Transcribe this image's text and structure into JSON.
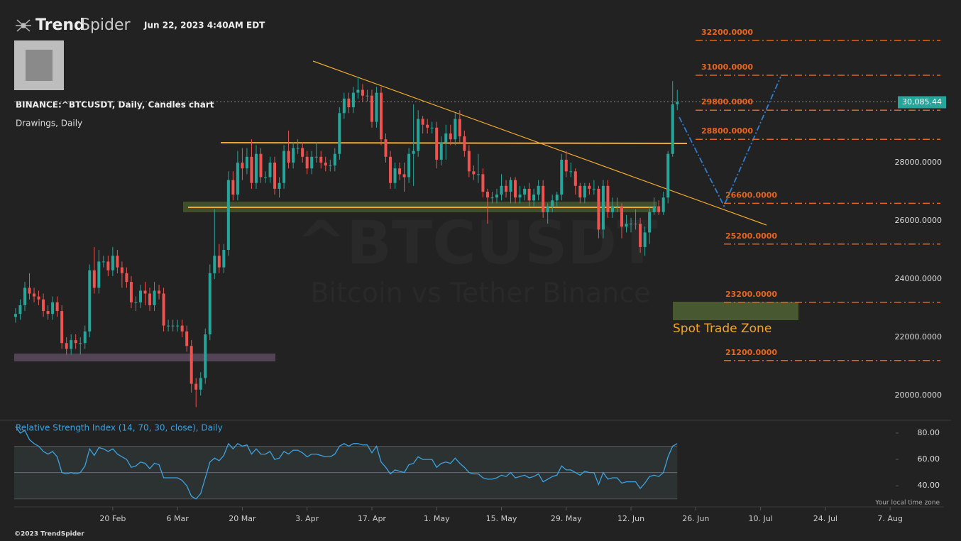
{
  "header": {
    "logo_bold": "Trend",
    "logo_light": "Spider",
    "timestamp": "Jun 22, 2023 4:40AM EDT",
    "symbol_label": "BINANCE:^BTCUSDT, Daily, Candles chart",
    "drawings_label": "Drawings, Daily"
  },
  "footer": {
    "copyright": "©2023 TrendSpider",
    "timezone_note": "Your local time zone"
  },
  "chart_data": [
    {
      "type": "candlestick",
      "watermark_title": "^BTCUSDT",
      "watermark_subtitle": "Bitcoin vs Tether Binance",
      "annotation": "Spot Trade Zone",
      "up_color": "#26a69a",
      "down_color": "#ef5350",
      "level_color": "#e8641f",
      "xlim": [
        -0.3,
        189.9
      ],
      "xticks": [
        {
          "value": 21,
          "label": "20 Feb"
        },
        {
          "value": 35,
          "label": "6 Mar"
        },
        {
          "value": 49,
          "label": "20 Mar"
        },
        {
          "value": 63,
          "label": "3. Apr"
        },
        {
          "value": 77,
          "label": "17. Apr"
        },
        {
          "value": 91,
          "label": "1. May"
        },
        {
          "value": 105,
          "label": "15. May"
        },
        {
          "value": 119,
          "label": "29. May"
        },
        {
          "value": 133,
          "label": "12. Jun"
        },
        {
          "value": 147,
          "label": "26. Jun"
        },
        {
          "value": 161,
          "label": "10. Jul"
        },
        {
          "value": 175,
          "label": "24. Jul"
        },
        {
          "value": 189,
          "label": "7. Aug"
        }
      ],
      "ylim": [
        19195,
        32854
      ],
      "yticks": [
        {
          "value": 20000,
          "label": "20000.0000"
        },
        {
          "value": 22000,
          "label": "22000.0000"
        },
        {
          "value": 24000,
          "label": "24000.0000"
        },
        {
          "value": 26000,
          "label": "26000.0000"
        },
        {
          "value": 28000,
          "label": "28000.0000"
        }
      ],
      "last_price": {
        "value": 30085.44,
        "label": "30,085.44"
      },
      "levels": [
        {
          "value": 32200,
          "label": "32200.0000"
        },
        {
          "value": 31000,
          "label": "31000.0000"
        },
        {
          "value": 29800,
          "label": "29800.0000"
        },
        {
          "value": 28800,
          "label": "28800.0000"
        },
        {
          "value": 26600,
          "label": "26600.0000"
        },
        {
          "value": 25200,
          "label": "25200.0000"
        },
        {
          "value": 23200,
          "label": "23200.0000"
        },
        {
          "value": 21200,
          "label": "21200.0000"
        }
      ],
      "ohlc": [
        [
          22700,
          23000,
          22500,
          22800
        ],
        [
          22800,
          23300,
          22600,
          23100
        ],
        [
          23100,
          23900,
          22900,
          23700
        ],
        [
          23700,
          24200,
          23300,
          23500
        ],
        [
          23500,
          23700,
          23200,
          23400
        ],
        [
          23400,
          23600,
          23100,
          23300
        ],
        [
          23300,
          23500,
          22700,
          22900
        ],
        [
          22900,
          23100,
          22600,
          22800
        ],
        [
          22800,
          23400,
          22600,
          23200
        ],
        [
          23200,
          23400,
          22700,
          22900
        ],
        [
          22900,
          23100,
          21600,
          21800
        ],
        [
          21800,
          22000,
          21400,
          21600
        ],
        [
          21600,
          22100,
          21400,
          21900
        ],
        [
          21900,
          22100,
          21600,
          21800
        ],
        [
          21800,
          22000,
          21400,
          21800
        ],
        [
          21800,
          22400,
          21600,
          22200
        ],
        [
          22200,
          24500,
          22000,
          24300
        ],
        [
          24300,
          25100,
          23500,
          23700
        ],
        [
          23700,
          25000,
          23500,
          24600
        ],
        [
          24600,
          24800,
          24400,
          24600
        ],
        [
          24600,
          24800,
          24100,
          24300
        ],
        [
          24300,
          25100,
          24100,
          24800
        ],
        [
          24800,
          25000,
          24200,
          24400
        ],
        [
          24400,
          24600,
          23700,
          24200
        ],
        [
          24200,
          24400,
          23700,
          23900
        ],
        [
          23900,
          24100,
          23000,
          23200
        ],
        [
          23200,
          23400,
          22900,
          23200
        ],
        [
          23200,
          23800,
          23000,
          23600
        ],
        [
          23600,
          23900,
          23100,
          23500
        ],
        [
          23500,
          23700,
          22900,
          23100
        ],
        [
          23100,
          23900,
          22900,
          23600
        ],
        [
          23600,
          23800,
          23300,
          23500
        ],
        [
          23500,
          23700,
          22200,
          22400
        ],
        [
          22400,
          22600,
          22200,
          22400
        ],
        [
          22400,
          22600,
          22200,
          22400
        ],
        [
          22400,
          22600,
          22200,
          22400
        ],
        [
          22400,
          22600,
          22000,
          22200
        ],
        [
          22200,
          22400,
          21500,
          21700
        ],
        [
          21700,
          21900,
          20100,
          20400
        ],
        [
          20400,
          20600,
          19600,
          20200
        ],
        [
          20200,
          20800,
          20000,
          20600
        ],
        [
          20600,
          22300,
          20400,
          22100
        ],
        [
          22100,
          24500,
          21900,
          24200
        ],
        [
          24200,
          26400,
          24000,
          24800
        ],
        [
          24800,
          25200,
          24200,
          24400
        ],
        [
          24400,
          25200,
          24200,
          25000
        ],
        [
          25000,
          27700,
          24800,
          27400
        ],
        [
          27400,
          27700,
          26700,
          26900
        ],
        [
          26900,
          28400,
          26700,
          28000
        ],
        [
          28000,
          28500,
          27400,
          27800
        ],
        [
          27800,
          28500,
          27600,
          28200
        ],
        [
          28200,
          28800,
          27100,
          27300
        ],
        [
          27300,
          28600,
          27100,
          28300
        ],
        [
          28300,
          28500,
          27300,
          27500
        ],
        [
          27500,
          27700,
          27300,
          27500
        ],
        [
          27500,
          28200,
          27300,
          28000
        ],
        [
          28000,
          28200,
          26900,
          27100
        ],
        [
          27100,
          27500,
          26800,
          27300
        ],
        [
          27300,
          28600,
          27100,
          28400
        ],
        [
          28400,
          29100,
          27800,
          28000
        ],
        [
          28000,
          28700,
          27800,
          28500
        ],
        [
          28500,
          28800,
          28300,
          28500
        ],
        [
          28500,
          28700,
          28000,
          28200
        ],
        [
          28200,
          28400,
          27600,
          27800
        ],
        [
          27800,
          28400,
          27600,
          28200
        ],
        [
          28200,
          28700,
          28000,
          28200
        ],
        [
          28200,
          28400,
          27800,
          28000
        ],
        [
          28000,
          28200,
          27700,
          27900
        ],
        [
          27900,
          28100,
          27700,
          27900
        ],
        [
          27900,
          28500,
          27700,
          28300
        ],
        [
          28300,
          29900,
          28100,
          29700
        ],
        [
          29700,
          30400,
          29500,
          30200
        ],
        [
          30200,
          30400,
          29700,
          29900
        ],
        [
          29900,
          30600,
          29700,
          30400
        ],
        [
          30400,
          30950,
          30200,
          30500
        ],
        [
          30500,
          30700,
          30100,
          30300
        ],
        [
          30300,
          30500,
          30100,
          30300
        ],
        [
          30300,
          30500,
          29200,
          29400
        ],
        [
          29400,
          30600,
          29200,
          30400
        ],
        [
          30400,
          30600,
          28600,
          28800
        ],
        [
          28800,
          29000,
          28000,
          28200
        ],
        [
          28200,
          28400,
          27100,
          27300
        ],
        [
          27300,
          28000,
          27100,
          27800
        ],
        [
          27800,
          28000,
          27400,
          27600
        ],
        [
          27600,
          28000,
          27000,
          27500
        ],
        [
          27500,
          28500,
          27300,
          28300
        ],
        [
          28300,
          30000,
          27200,
          28400
        ],
        [
          28400,
          29800,
          28200,
          29500
        ],
        [
          29500,
          29600,
          29000,
          29300
        ],
        [
          29300,
          29500,
          29000,
          29200
        ],
        [
          29200,
          29400,
          29000,
          29200
        ],
        [
          29200,
          29400,
          27800,
          28100
        ],
        [
          28100,
          28900,
          27900,
          28700
        ],
        [
          28700,
          29300,
          28100,
          29000
        ],
        [
          29000,
          29300,
          28600,
          28800
        ],
        [
          28800,
          29700,
          28600,
          29500
        ],
        [
          29500,
          29800,
          28700,
          28900
        ],
        [
          28900,
          29100,
          28200,
          28400
        ],
        [
          28400,
          28600,
          27500,
          27700
        ],
        [
          27700,
          27900,
          27400,
          27600
        ],
        [
          27600,
          28300,
          27300,
          27600
        ],
        [
          27600,
          27800,
          26800,
          27000
        ],
        [
          27000,
          27100,
          25900,
          26800
        ],
        [
          26800,
          27000,
          26600,
          26800
        ],
        [
          26800,
          27100,
          26600,
          26900
        ],
        [
          26900,
          27600,
          26700,
          27200
        ],
        [
          27200,
          27400,
          26800,
          27000
        ],
        [
          27000,
          27500,
          26600,
          27400
        ],
        [
          27400,
          27500,
          26600,
          26800
        ],
        [
          26800,
          27200,
          26600,
          26900
        ],
        [
          26900,
          27200,
          26700,
          27100
        ],
        [
          27100,
          27300,
          26500,
          26700
        ],
        [
          26700,
          27100,
          26500,
          26900
        ],
        [
          26900,
          27400,
          26700,
          27200
        ],
        [
          27200,
          27400,
          26100,
          26300
        ],
        [
          26300,
          26600,
          25900,
          26500
        ],
        [
          26500,
          26900,
          26300,
          26700
        ],
        [
          26700,
          27000,
          26500,
          26900
        ],
        [
          26900,
          28300,
          26700,
          28100
        ],
        [
          28100,
          28400,
          27500,
          27700
        ],
        [
          27700,
          28000,
          27500,
          27700
        ],
        [
          27700,
          27800,
          26900,
          27200
        ],
        [
          27200,
          27300,
          26600,
          26800
        ],
        [
          26800,
          27300,
          26600,
          27200
        ],
        [
          27200,
          27300,
          26900,
          27100
        ],
        [
          27100,
          27400,
          26900,
          27100
        ],
        [
          27100,
          27200,
          25400,
          25700
        ],
        [
          25700,
          27400,
          25400,
          27200
        ],
        [
          27200,
          27400,
          26100,
          26300
        ],
        [
          26300,
          26800,
          26100,
          26500
        ],
        [
          26500,
          26800,
          26300,
          26500
        ],
        [
          26500,
          26600,
          25400,
          25800
        ],
        [
          25800,
          26200,
          25600,
          25900
        ],
        [
          25900,
          26100,
          25600,
          25900
        ],
        [
          25900,
          26400,
          25700,
          25900
        ],
        [
          25900,
          26100,
          24900,
          25100
        ],
        [
          25100,
          25800,
          24800,
          25600
        ],
        [
          25600,
          26500,
          25200,
          26300
        ],
        [
          26300,
          26800,
          26200,
          26500
        ],
        [
          26500,
          26700,
          26200,
          26300
        ],
        [
          26300,
          27000,
          26200,
          26800
        ],
        [
          26800,
          28400,
          26600,
          28300
        ],
        [
          28300,
          30800,
          28200,
          30000
        ],
        [
          30000,
          30500,
          29800,
          30085
        ]
      ]
    },
    {
      "type": "line",
      "title": "Relative Strength Index (14, 70, 30, close), Daily",
      "color": "#3ba3e0",
      "band": [
        30,
        70
      ],
      "midline": 50,
      "ylim": [
        25,
        88.6
      ],
      "yticks": [
        {
          "value": 40,
          "label": "40.00"
        },
        {
          "value": 60,
          "label": "60.00"
        },
        {
          "value": 80,
          "label": "80.00"
        }
      ],
      "values": [
        85,
        80,
        82,
        75,
        72,
        70,
        66,
        64,
        66,
        62,
        50,
        49,
        50,
        49,
        50,
        55,
        68,
        63,
        69,
        68,
        66,
        68,
        64,
        62,
        60,
        54,
        55,
        58,
        57,
        53,
        57,
        56,
        46,
        46,
        46,
        46,
        44,
        40,
        32,
        30,
        34,
        46,
        58,
        61,
        59,
        63,
        72,
        68,
        72,
        70,
        71,
        64,
        68,
        64,
        64,
        66,
        60,
        61,
        66,
        64,
        67,
        67,
        65,
        62,
        64,
        64,
        63,
        62,
        62,
        64,
        70,
        72,
        70,
        72,
        72,
        71,
        71,
        65,
        70,
        58,
        54,
        49,
        52,
        51,
        50,
        56,
        57,
        62,
        60,
        60,
        60,
        54,
        57,
        58,
        57,
        61,
        57,
        54,
        50,
        49,
        49,
        46,
        45,
        45,
        46,
        48,
        47,
        50,
        46,
        47,
        48,
        46,
        47,
        49,
        43,
        45,
        47,
        48,
        55,
        52,
        52,
        50,
        48,
        51,
        50,
        50,
        41,
        50,
        45,
        46,
        46,
        42,
        43,
        43,
        43,
        38,
        42,
        47,
        48,
        47,
        50,
        62,
        70,
        72
      ]
    }
  ]
}
